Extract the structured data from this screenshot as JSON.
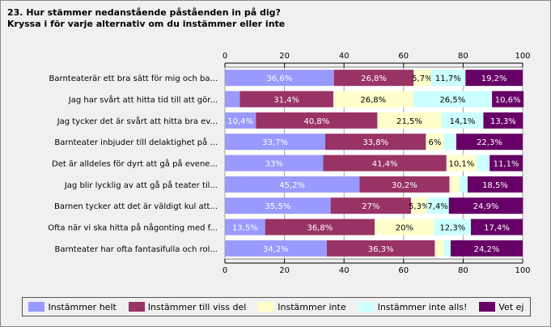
{
  "title_lines": [
    "23. Hur stämmer nedanstående påståenden in på dig?",
    "Kryssa i för varje alternativ om du instämmer eller inte"
  ],
  "colors": {
    "series": [
      "#9999ff",
      "#993366",
      "#ffffcc",
      "#ccffff",
      "#660066"
    ],
    "plot_background": "#ffffff",
    "grid": "#a0a0a0"
  },
  "chart_data": {
    "type": "bar",
    "orientation": "horizontal",
    "stacked": true,
    "xlim": [
      0,
      100
    ],
    "ticks": [
      "0",
      "20",
      "40",
      "60",
      "80",
      "100"
    ],
    "tick_values": [
      0,
      20,
      40,
      60,
      80,
      100
    ],
    "grid": true,
    "legend_position": "bottom",
    "categories": [
      "Barnteaterär ett bra sätt för mig och ba...",
      "Jag har svårt att hitta tid till att gör...",
      "Jag tycker det är svårt att hitta bra ev...",
      "Barnteater inbjuder till delaktighet på ...",
      "Det är alldeles för dyrt att gå på evene...",
      "Jag blir lycklig av att gå på teater til...",
      "Barnen tycker att det är väldigt kul att...",
      "Ofta när vi ska hitta på någonting med f...",
      "Barnteater har ofta fantasifulla och rol..."
    ],
    "series": [
      {
        "name": "Instämmer helt",
        "values": [
          36.6,
          5.0,
          10.4,
          33.7,
          33.0,
          45.2,
          35.5,
          13.5,
          34.2
        ],
        "labels": [
          "36,6%",
          "",
          "10,4%",
          "33,7%",
          "33%",
          "45,2%",
          "35,5%",
          "13,5%",
          "34,2%"
        ]
      },
      {
        "name": "Instämmer till viss del",
        "values": [
          26.8,
          31.4,
          40.8,
          33.8,
          41.4,
          30.2,
          27.0,
          36.8,
          36.3
        ],
        "labels": [
          "26,8%",
          "31,4%",
          "40,8%",
          "33,8%",
          "41,4%",
          "30,2%",
          "27%",
          "36,8%",
          "36,3%"
        ]
      },
      {
        "name": "Instämmer inte",
        "values": [
          5.7,
          26.8,
          21.5,
          6.0,
          10.1,
          3.3,
          5.3,
          20.0,
          3.0
        ],
        "labels": [
          "5,7%",
          "26,8%",
          "21,5%",
          "6%",
          "10,1%",
          "",
          "5,3%",
          "20%",
          ""
        ]
      },
      {
        "name": "Instämmer inte alls!",
        "values": [
          11.7,
          26.5,
          14.1,
          4.2,
          4.4,
          2.8,
          7.4,
          12.3,
          2.3
        ],
        "labels": [
          "11,7%",
          "26,5%",
          "14,1%",
          "",
          "",
          "",
          "7,4%",
          "12,3%",
          ""
        ]
      },
      {
        "name": "Vet ej",
        "values": [
          19.2,
          10.6,
          13.3,
          22.3,
          11.1,
          18.5,
          24.9,
          17.4,
          24.2
        ],
        "labels": [
          "19,2%",
          "10,6%",
          "13,3%",
          "22,3%",
          "11,1%",
          "18,5%",
          "24,9%",
          "17,4%",
          "24,2%"
        ]
      }
    ]
  }
}
